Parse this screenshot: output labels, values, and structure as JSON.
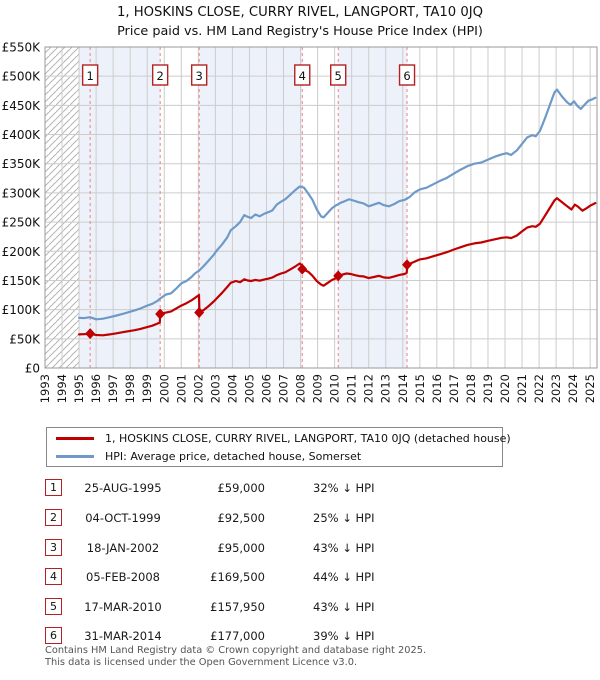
{
  "title": "1, HOSKINS CLOSE, CURRY RIVEL, LANGPORT, TA10 0JQ",
  "subtitle": "Price paid vs. HM Land Registry's House Price Index (HPI)",
  "legend": [
    {
      "label": "1, HOSKINS CLOSE, CURRY RIVEL, LANGPORT, TA10 0JQ (detached house)",
      "color": "#c00000"
    },
    {
      "label": "HPI: Average price, detached house, Somerset",
      "color": "#6e99c9"
    }
  ],
  "sales": [
    {
      "num": "1",
      "date": "25-AUG-1995",
      "price": "£59,000",
      "hpi_diff": "32% ↓ HPI"
    },
    {
      "num": "2",
      "date": "04-OCT-1999",
      "price": "£92,500",
      "hpi_diff": "25% ↓ HPI"
    },
    {
      "num": "3",
      "date": "18-JAN-2002",
      "price": "£95,000",
      "hpi_diff": "43% ↓ HPI"
    },
    {
      "num": "4",
      "date": "05-FEB-2008",
      "price": "£169,500",
      "hpi_diff": "44% ↓ HPI"
    },
    {
      "num": "5",
      "date": "17-MAR-2010",
      "price": "£157,950",
      "hpi_diff": "43% ↓ HPI"
    },
    {
      "num": "6",
      "date": "31-MAR-2014",
      "price": "£177,000",
      "hpi_diff": "39% ↓ HPI"
    }
  ],
  "footer_lines": [
    "Contains HM Land Registry data © Crown copyright and database right 2025.",
    "This data is licensed under the Open Government Licence v3.0."
  ],
  "chart_data": {
    "type": "line",
    "unit": "GBP_thousands",
    "x_axis": {
      "range": [
        1993,
        2025.4
      ],
      "tick_years": [
        1993,
        1994,
        1995,
        1996,
        1997,
        1998,
        1999,
        2000,
        2001,
        2002,
        2003,
        2004,
        2005,
        2006,
        2007,
        2008,
        2009,
        2010,
        2011,
        2012,
        2013,
        2014,
        2015,
        2016,
        2017,
        2018,
        2019,
        2020,
        2021,
        2022,
        2023,
        2024,
        2025
      ]
    },
    "y_axis": {
      "range": [
        0,
        550
      ],
      "tick_step": 50,
      "tick_labels": [
        "£0",
        "£50K",
        "£100K",
        "£150K",
        "£200K",
        "£250K",
        "£300K",
        "£350K",
        "£400K",
        "£450K",
        "£500K",
        "£550K"
      ]
    },
    "no_data_region": [
      1993,
      1995.0
    ],
    "shaded_periods": [
      [
        1995.0,
        1999.76
      ],
      [
        2002.05,
        2008.1
      ],
      [
        2010.21,
        2014.25
      ]
    ],
    "colors": {
      "price_line": "#c00000",
      "hpi_line": "#6e99c9",
      "band": "#edf2fa",
      "grid": "#cccccc",
      "frame": "#999999",
      "sale_dash": "#f08080",
      "sale_box_border": "#b22222",
      "hatch": "#b5b5b5"
    },
    "sale_markers": [
      {
        "num": "1",
        "year": 1995.65,
        "value": 59
      },
      {
        "num": "2",
        "year": 1999.76,
        "value": 92.5
      },
      {
        "num": "3",
        "year": 2002.05,
        "value": 95
      },
      {
        "num": "4",
        "year": 2008.1,
        "value": 169.5
      },
      {
        "num": "5",
        "year": 2010.21,
        "value": 157.95
      },
      {
        "num": "6",
        "year": 2014.25,
        "value": 177
      }
    ],
    "series": [
      {
        "name": "hpi",
        "color": "#6e99c9",
        "points": [
          [
            1995.0,
            86
          ],
          [
            1995.3,
            85.5
          ],
          [
            1995.65,
            87
          ],
          [
            1996.0,
            83.5
          ],
          [
            1996.4,
            84.5
          ],
          [
            1996.8,
            87
          ],
          [
            1997.2,
            90
          ],
          [
            1997.6,
            93
          ],
          [
            1998.0,
            96.5
          ],
          [
            1998.3,
            99
          ],
          [
            1998.6,
            102
          ],
          [
            1999.0,
            107
          ],
          [
            1999.3,
            110
          ],
          [
            1999.6,
            115
          ],
          [
            1999.8,
            120
          ],
          [
            2000.1,
            126
          ],
          [
            2000.4,
            128
          ],
          [
            2000.7,
            136
          ],
          [
            2001.0,
            145
          ],
          [
            2001.3,
            149
          ],
          [
            2001.6,
            156
          ],
          [
            2001.8,
            162
          ],
          [
            2002.05,
            167
          ],
          [
            2002.3,
            174
          ],
          [
            2002.6,
            184
          ],
          [
            2002.9,
            194
          ],
          [
            2003.1,
            202
          ],
          [
            2003.4,
            212
          ],
          [
            2003.7,
            224
          ],
          [
            2003.9,
            236
          ],
          [
            2004.2,
            243
          ],
          [
            2004.45,
            250
          ],
          [
            2004.7,
            262
          ],
          [
            2004.9,
            259
          ],
          [
            2005.1,
            257
          ],
          [
            2005.35,
            263
          ],
          [
            2005.6,
            260
          ],
          [
            2005.85,
            264
          ],
          [
            2006.1,
            267
          ],
          [
            2006.35,
            270
          ],
          [
            2006.6,
            280
          ],
          [
            2006.85,
            285
          ],
          [
            2007.1,
            289
          ],
          [
            2007.4,
            297
          ],
          [
            2007.7,
            305
          ],
          [
            2007.95,
            311
          ],
          [
            2008.2,
            309
          ],
          [
            2008.45,
            299
          ],
          [
            2008.7,
            288
          ],
          [
            2008.95,
            272
          ],
          [
            2009.2,
            260
          ],
          [
            2009.35,
            258
          ],
          [
            2009.6,
            266
          ],
          [
            2009.85,
            274
          ],
          [
            2010.1,
            279
          ],
          [
            2010.35,
            283
          ],
          [
            2010.6,
            286
          ],
          [
            2010.85,
            289
          ],
          [
            2011.1,
            287
          ],
          [
            2011.4,
            284
          ],
          [
            2011.7,
            282
          ],
          [
            2012.0,
            277
          ],
          [
            2012.3,
            280
          ],
          [
            2012.6,
            283
          ],
          [
            2012.9,
            279
          ],
          [
            2013.2,
            277
          ],
          [
            2013.5,
            281
          ],
          [
            2013.8,
            286
          ],
          [
            2014.1,
            288
          ],
          [
            2014.4,
            293
          ],
          [
            2014.7,
            301
          ],
          [
            2015.0,
            306
          ],
          [
            2015.4,
            309
          ],
          [
            2015.8,
            315
          ],
          [
            2016.2,
            321
          ],
          [
            2016.6,
            326
          ],
          [
            2017.0,
            333
          ],
          [
            2017.4,
            340
          ],
          [
            2017.8,
            346
          ],
          [
            2018.2,
            350
          ],
          [
            2018.6,
            352
          ],
          [
            2019.0,
            357
          ],
          [
            2019.4,
            362
          ],
          [
            2019.8,
            366
          ],
          [
            2020.1,
            368
          ],
          [
            2020.35,
            365
          ],
          [
            2020.7,
            373
          ],
          [
            2021.0,
            384
          ],
          [
            2021.3,
            395
          ],
          [
            2021.6,
            399
          ],
          [
            2021.8,
            397
          ],
          [
            2022.05,
            406
          ],
          [
            2022.35,
            428
          ],
          [
            2022.65,
            452
          ],
          [
            2022.9,
            472
          ],
          [
            2023.05,
            477
          ],
          [
            2023.35,
            465
          ],
          [
            2023.65,
            455
          ],
          [
            2023.85,
            451
          ],
          [
            2024.05,
            457
          ],
          [
            2024.25,
            449
          ],
          [
            2024.45,
            444
          ],
          [
            2024.7,
            452
          ],
          [
            2024.9,
            458
          ],
          [
            2025.1,
            460
          ],
          [
            2025.3,
            463
          ]
        ]
      },
      {
        "name": "price_paid",
        "color": "#c00000",
        "points": [
          [
            1995.0,
            57.5
          ],
          [
            1995.3,
            58
          ],
          [
            1995.65,
            59
          ],
          [
            1996.0,
            56.5
          ],
          [
            1996.4,
            56
          ],
          [
            1996.8,
            57.5
          ],
          [
            1997.2,
            59.5
          ],
          [
            1997.6,
            61.5
          ],
          [
            1998.0,
            63.5
          ],
          [
            1998.3,
            65
          ],
          [
            1998.6,
            67
          ],
          [
            1999.0,
            70
          ],
          [
            1999.3,
            72.5
          ],
          [
            1999.6,
            76
          ],
          [
            1999.74,
            78
          ],
          [
            1999.76,
            92.5
          ],
          [
            2000.1,
            95
          ],
          [
            2000.4,
            97
          ],
          [
            2000.7,
            102
          ],
          [
            2001.0,
            107
          ],
          [
            2001.3,
            111
          ],
          [
            2001.6,
            116
          ],
          [
            2001.8,
            120
          ],
          [
            2002.04,
            125
          ],
          [
            2002.06,
            95
          ],
          [
            2002.3,
            99
          ],
          [
            2002.6,
            106
          ],
          [
            2002.9,
            114
          ],
          [
            2003.1,
            120
          ],
          [
            2003.4,
            129
          ],
          [
            2003.7,
            139
          ],
          [
            2003.9,
            146
          ],
          [
            2004.2,
            149
          ],
          [
            2004.45,
            147
          ],
          [
            2004.7,
            152
          ],
          [
            2004.9,
            150
          ],
          [
            2005.1,
            149
          ],
          [
            2005.35,
            151
          ],
          [
            2005.6,
            149.5
          ],
          [
            2005.85,
            151.5
          ],
          [
            2006.1,
            153
          ],
          [
            2006.35,
            155
          ],
          [
            2006.6,
            159
          ],
          [
            2006.85,
            162
          ],
          [
            2007.1,
            164
          ],
          [
            2007.4,
            169
          ],
          [
            2007.7,
            174
          ],
          [
            2007.95,
            179
          ],
          [
            2008.08,
            176
          ],
          [
            2008.1,
            169.5
          ],
          [
            2008.45,
            165
          ],
          [
            2008.7,
            158
          ],
          [
            2008.95,
            149
          ],
          [
            2009.2,
            143
          ],
          [
            2009.35,
            141
          ],
          [
            2009.6,
            146
          ],
          [
            2009.85,
            151
          ],
          [
            2010.1,
            154
          ],
          [
            2010.21,
            158
          ],
          [
            2010.45,
            160
          ],
          [
            2010.7,
            162
          ],
          [
            2010.95,
            161
          ],
          [
            2011.2,
            159
          ],
          [
            2011.45,
            157.5
          ],
          [
            2011.7,
            157
          ],
          [
            2012.0,
            154
          ],
          [
            2012.3,
            156
          ],
          [
            2012.6,
            158
          ],
          [
            2012.9,
            155
          ],
          [
            2013.2,
            154.5
          ],
          [
            2013.5,
            157
          ],
          [
            2013.8,
            159.5
          ],
          [
            2014.1,
            161
          ],
          [
            2014.23,
            163
          ],
          [
            2014.27,
            177
          ],
          [
            2014.6,
            181
          ],
          [
            2015.0,
            186
          ],
          [
            2015.4,
            188
          ],
          [
            2015.8,
            191.5
          ],
          [
            2016.2,
            195
          ],
          [
            2016.6,
            198.5
          ],
          [
            2017.0,
            203
          ],
          [
            2017.4,
            207
          ],
          [
            2017.8,
            211
          ],
          [
            2018.2,
            213.5
          ],
          [
            2018.6,
            215
          ],
          [
            2019.0,
            218
          ],
          [
            2019.4,
            220.5
          ],
          [
            2019.8,
            223
          ],
          [
            2020.1,
            224
          ],
          [
            2020.35,
            222.5
          ],
          [
            2020.7,
            227
          ],
          [
            2021.0,
            234
          ],
          [
            2021.3,
            240.5
          ],
          [
            2021.6,
            243
          ],
          [
            2021.8,
            242
          ],
          [
            2022.05,
            247
          ],
          [
            2022.35,
            261
          ],
          [
            2022.65,
            275
          ],
          [
            2022.9,
            287
          ],
          [
            2023.05,
            291
          ],
          [
            2023.35,
            284
          ],
          [
            2023.65,
            277
          ],
          [
            2023.9,
            271.5
          ],
          [
            2024.1,
            280
          ],
          [
            2024.3,
            276
          ],
          [
            2024.55,
            269.5
          ],
          [
            2024.8,
            274
          ],
          [
            2025.0,
            278
          ],
          [
            2025.3,
            282.5
          ]
        ]
      }
    ]
  }
}
